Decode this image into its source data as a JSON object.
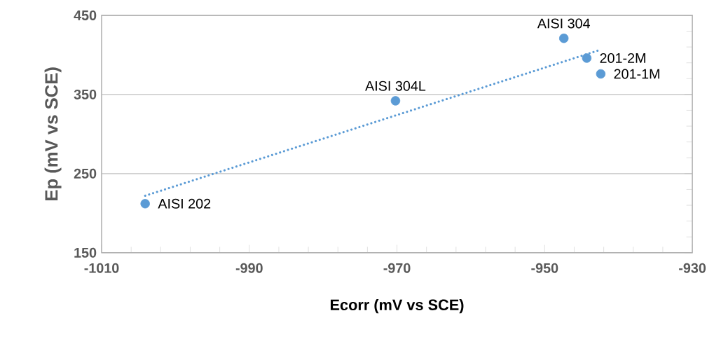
{
  "chart_data": {
    "type": "scatter",
    "xlabel": "Ecorr (mV vs SCE)",
    "ylabel": "Ep (mV vs SCE)",
    "xlim": [
      -1010,
      -930
    ],
    "xticks": [
      -1010,
      -990,
      -970,
      -950,
      -930
    ],
    "ylim": [
      150,
      450
    ],
    "yticks": [
      150,
      250,
      350,
      450
    ],
    "grid": "y",
    "marker": "circle",
    "series": [
      {
        "color": "#5b9bd5",
        "x": [
          -1004.1,
          -970.2,
          -947.4,
          -944.3,
          -942.4
        ],
        "values": [
          212,
          342,
          421,
          396,
          376
        ]
      },
      {
        "type": "line",
        "color": "#5b9bd5",
        "line_style": "dotted",
        "marker": "none",
        "x": [
          -1004.1,
          -942.6
        ],
        "values": [
          222,
          406
        ]
      }
    ],
    "annotations": [
      {
        "text": "AISI 202",
        "x": -1004.1,
        "y": 212
      },
      {
        "text": "AISI 304L",
        "x": -970.2,
        "y": 342
      },
      {
        "text": "AISI 304",
        "x": -947.4,
        "y": 421
      },
      {
        "text": "201-2M",
        "x": -944.3,
        "y": 396
      },
      {
        "text": "201-1M",
        "x": -942.4,
        "y": 376
      }
    ]
  }
}
